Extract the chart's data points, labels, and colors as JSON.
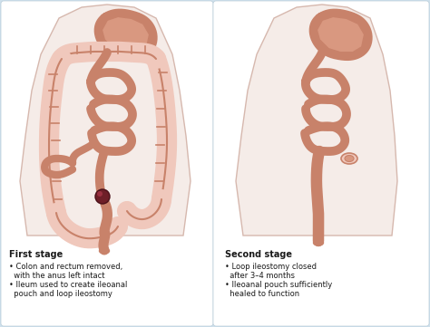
{
  "bg_color": "#cfe0ec",
  "panel_bg": "#f5f8fa",
  "body_fill": "#f5ece8",
  "body_outline": "#d6b8ae",
  "stomach_dark": "#c8826a",
  "stomach_mid": "#d99880",
  "intestine_dark": "#c8826a",
  "intestine_mid": "#d99880",
  "colon_light": "#f0c8bc",
  "colon_outline": "#c8826a",
  "disease_fill": "#6e1f28",
  "disease_outline": "#4a1018",
  "text_color": "#1a1a1a",
  "divider_color": "#b8ccd8",
  "title1": "First stage",
  "title2": "Second stage",
  "b1a": "• Colon and rectum removed,",
  "b1b": "  with the anus left intact",
  "b1c": "• Ileum used to create ileoanal",
  "b1d": "  pouch and loop ileostomy",
  "b2a": "• Loop ileostomy closed",
  "b2b": "  after 3–4 months",
  "b2c": "• Ileoanal pouch sufficiently",
  "b2d": "  healed to function"
}
